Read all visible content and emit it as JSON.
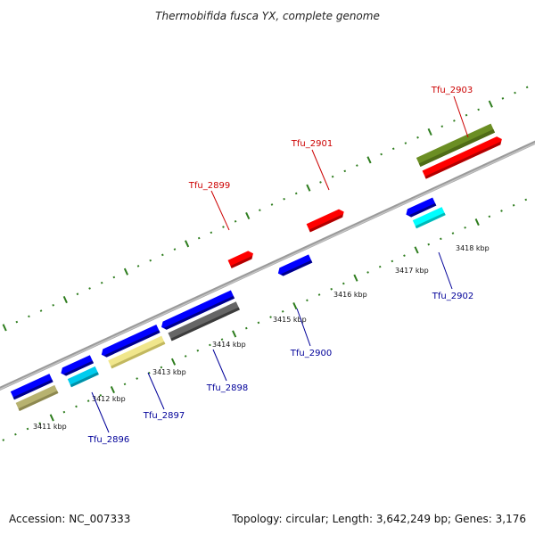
{
  "title": "Thermobifida fusca YX, complete genome",
  "footer": {
    "accession": "Accession: NC_007333",
    "summary": "Topology: circular; Length: 3,642,249 bp; Genes: 3,176"
  },
  "colors": {
    "forward_label": "#cc0000",
    "reverse_label": "#000099",
    "tick": "#2e7d1e",
    "backbone": "#8a8a8a"
  },
  "scale_labels": [
    "3411 kbp",
    "3412 kbp",
    "3413 kbp",
    "3414 kbp",
    "3415 kbp",
    "3416 kbp",
    "3417 kbp",
    "3418 kbp"
  ],
  "gene_labels": {
    "forward": [
      "Tfu_2899",
      "Tfu_2901",
      "Tfu_2903"
    ],
    "reverse": [
      "Tfu_2896",
      "Tfu_2897",
      "Tfu_2898",
      "Tfu_2900",
      "Tfu_2902"
    ]
  },
  "features": [
    {
      "name": "Tfu_2899",
      "strand": "forward",
      "color": "#ff0000"
    },
    {
      "name": "Tfu_2901",
      "strand": "forward",
      "color": "#ff0000"
    },
    {
      "name": "Tfu_2903",
      "strand": "forward",
      "color": "#ff0000"
    },
    {
      "name": "Tfu_2903 track",
      "strand": "forward",
      "color": "#6b8e23"
    },
    {
      "name": "Tfu_2896",
      "strand": "reverse",
      "color": "#00ccee"
    },
    {
      "name": "Tfu_2897",
      "strand": "reverse",
      "color": "#f0e68c"
    },
    {
      "name": "Tfu_2898",
      "strand": "reverse",
      "color": "#666666"
    },
    {
      "name": "Tfu_2900",
      "strand": "reverse",
      "color": "#0000ff"
    },
    {
      "name": "Tfu_2902",
      "strand": "reverse",
      "color": "#00ffff"
    }
  ]
}
